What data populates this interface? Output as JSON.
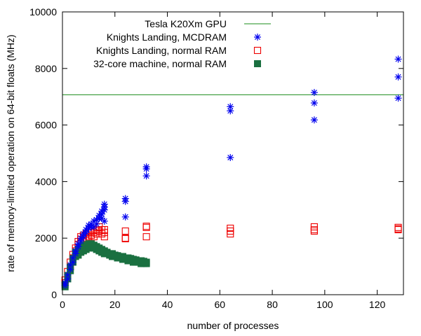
{
  "chart_data": {
    "type": "scatter",
    "title": "",
    "xlabel": "number of processes",
    "ylabel": "rate of memory-limited operation on 64-bit floats (MHz)",
    "xlim": [
      0,
      130
    ],
    "ylim": [
      0,
      10000
    ],
    "x_ticks": [
      0,
      20,
      40,
      60,
      80,
      100,
      120
    ],
    "y_ticks": [
      0,
      2000,
      4000,
      6000,
      8000,
      10000
    ],
    "grid": false,
    "legend_position": "top-right",
    "colors": {
      "gpu": "#1a8c1a",
      "mcdram": "#0000ee",
      "knl_normal": "#ee0000",
      "core32": "#1a7040"
    },
    "series": [
      {
        "name": "Tesla K20Xm GPU",
        "kind": "hline",
        "marker": "line",
        "color": "#1a8c1a",
        "y": 7070
      },
      {
        "name": "Knights Landing, MCDRAM",
        "kind": "points",
        "marker": "asterisk",
        "color": "#0000ee",
        "points": [
          [
            1,
            330
          ],
          [
            1,
            420
          ],
          [
            2,
            560
          ],
          [
            2,
            700
          ],
          [
            3,
            900
          ],
          [
            3,
            1050
          ],
          [
            4,
            1150
          ],
          [
            4,
            1300
          ],
          [
            5,
            1450
          ],
          [
            5,
            1550
          ],
          [
            6,
            1700
          ],
          [
            6,
            1800
          ],
          [
            7,
            1900
          ],
          [
            7,
            2000
          ],
          [
            8,
            2050
          ],
          [
            8,
            2150
          ],
          [
            9,
            2200
          ],
          [
            9,
            2300
          ],
          [
            10,
            2350
          ],
          [
            10,
            2450
          ],
          [
            11,
            2400
          ],
          [
            11,
            2500
          ],
          [
            12,
            2600
          ],
          [
            12,
            2400
          ],
          [
            13,
            2650
          ],
          [
            13,
            2500
          ],
          [
            14,
            2700
          ],
          [
            14,
            2800
          ],
          [
            15,
            2850
          ],
          [
            15,
            2950
          ],
          [
            15,
            2700
          ],
          [
            16,
            3000
          ],
          [
            16,
            3100
          ],
          [
            16,
            3200
          ],
          [
            16,
            2600
          ],
          [
            24,
            3300
          ],
          [
            24,
            3400
          ],
          [
            24,
            2750
          ],
          [
            32,
            4200
          ],
          [
            32,
            4450
          ],
          [
            32,
            4520
          ],
          [
            64,
            6650
          ],
          [
            64,
            6500
          ],
          [
            64,
            4850
          ],
          [
            96,
            7150
          ],
          [
            96,
            6780
          ],
          [
            96,
            6180
          ],
          [
            128,
            8330
          ],
          [
            128,
            7700
          ],
          [
            128,
            6950
          ]
        ]
      },
      {
        "name": "Knights Landing, normal RAM",
        "kind": "points",
        "marker": "square",
        "color": "#ee0000",
        "points": [
          [
            1,
            420
          ],
          [
            1,
            520
          ],
          [
            2,
            680
          ],
          [
            2,
            820
          ],
          [
            3,
            980
          ],
          [
            3,
            1150
          ],
          [
            4,
            1300
          ],
          [
            4,
            1420
          ],
          [
            5,
            1550
          ],
          [
            5,
            1650
          ],
          [
            6,
            1780
          ],
          [
            6,
            1880
          ],
          [
            7,
            1950
          ],
          [
            7,
            2050
          ],
          [
            8,
            1900
          ],
          [
            8,
            2100
          ],
          [
            9,
            2000
          ],
          [
            9,
            2150
          ],
          [
            10,
            2050
          ],
          [
            10,
            2200
          ],
          [
            11,
            2100
          ],
          [
            11,
            2250
          ],
          [
            12,
            2200
          ],
          [
            12,
            2050
          ],
          [
            13,
            2300
          ],
          [
            13,
            2150
          ],
          [
            14,
            2400
          ],
          [
            14,
            2250
          ],
          [
            15,
            2300
          ],
          [
            15,
            2150
          ],
          [
            16,
            2200
          ],
          [
            16,
            2300
          ],
          [
            16,
            2050
          ],
          [
            24,
            2250
          ],
          [
            24,
            2000
          ],
          [
            24,
            1980
          ],
          [
            32,
            2380
          ],
          [
            32,
            2420
          ],
          [
            32,
            2050
          ],
          [
            64,
            2350
          ],
          [
            64,
            2250
          ],
          [
            64,
            2150
          ],
          [
            96,
            2400
          ],
          [
            96,
            2300
          ],
          [
            96,
            2250
          ],
          [
            128,
            2380
          ],
          [
            128,
            2330
          ],
          [
            128,
            2300
          ]
        ]
      },
      {
        "name": "32-core machine, normal RAM",
        "kind": "points",
        "marker": "filled-square",
        "color": "#1a7040",
        "points": [
          [
            1,
            280
          ],
          [
            1,
            350
          ],
          [
            2,
            560
          ],
          [
            2,
            680
          ],
          [
            3,
            850
          ],
          [
            3,
            980
          ],
          [
            4,
            1150
          ],
          [
            4,
            1280
          ],
          [
            5,
            1350
          ],
          [
            5,
            1500
          ],
          [
            6,
            1400
          ],
          [
            6,
            1600
          ],
          [
            7,
            1500
          ],
          [
            7,
            1700
          ],
          [
            8,
            1550
          ],
          [
            8,
            1750
          ],
          [
            9,
            1600
          ],
          [
            9,
            1750
          ],
          [
            10,
            1650
          ],
          [
            10,
            1800
          ],
          [
            11,
            1700
          ],
          [
            11,
            1800
          ],
          [
            12,
            1650
          ],
          [
            12,
            1750
          ],
          [
            13,
            1600
          ],
          [
            13,
            1700
          ],
          [
            14,
            1550
          ],
          [
            14,
            1650
          ],
          [
            15,
            1500
          ],
          [
            15,
            1600
          ],
          [
            16,
            1450
          ],
          [
            16,
            1550
          ],
          [
            17,
            1450
          ],
          [
            17,
            1500
          ],
          [
            18,
            1400
          ],
          [
            18,
            1450
          ],
          [
            19,
            1350
          ],
          [
            19,
            1450
          ],
          [
            20,
            1350
          ],
          [
            20,
            1400
          ],
          [
            21,
            1300
          ],
          [
            21,
            1380
          ],
          [
            22,
            1300
          ],
          [
            22,
            1350
          ],
          [
            23,
            1250
          ],
          [
            23,
            1350
          ],
          [
            24,
            1250
          ],
          [
            24,
            1300
          ],
          [
            25,
            1200
          ],
          [
            25,
            1300
          ],
          [
            26,
            1200
          ],
          [
            26,
            1280
          ],
          [
            27,
            1150
          ],
          [
            27,
            1250
          ],
          [
            28,
            1150
          ],
          [
            28,
            1230
          ],
          [
            29,
            1150
          ],
          [
            29,
            1200
          ],
          [
            30,
            1100
          ],
          [
            30,
            1200
          ],
          [
            31,
            1100
          ],
          [
            31,
            1180
          ],
          [
            32,
            1100
          ],
          [
            32,
            1150
          ]
        ]
      }
    ]
  }
}
